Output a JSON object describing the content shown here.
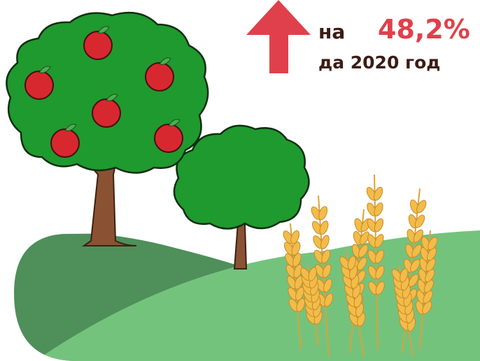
{
  "header": {
    "prefix": "на",
    "change": "48,2%",
    "period": "да 2020 год"
  }
}
